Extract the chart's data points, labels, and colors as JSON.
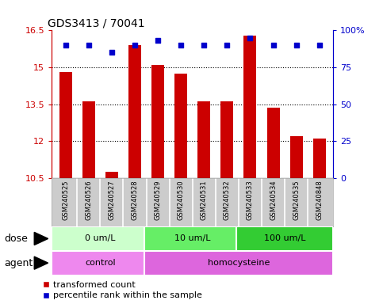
{
  "title": "GDS3413 / 70041",
  "samples": [
    "GSM240525",
    "GSM240526",
    "GSM240527",
    "GSM240528",
    "GSM240529",
    "GSM240530",
    "GSM240531",
    "GSM240532",
    "GSM240533",
    "GSM240534",
    "GSM240535",
    "GSM240848"
  ],
  "bar_values": [
    14.8,
    13.6,
    10.75,
    15.9,
    15.1,
    14.75,
    13.6,
    13.6,
    16.3,
    13.35,
    12.2,
    12.1
  ],
  "percentile_values": [
    90,
    90,
    85,
    90,
    93,
    90,
    90,
    90,
    95,
    90,
    90,
    90
  ],
  "bar_color": "#cc0000",
  "dot_color": "#0000cc",
  "ylim_left": [
    10.5,
    16.5
  ],
  "ylim_right": [
    0,
    100
  ],
  "yticks_left": [
    10.5,
    12.0,
    13.5,
    15.0,
    16.5
  ],
  "yticks_right": [
    0,
    25,
    50,
    75,
    100
  ],
  "ytick_labels_left": [
    "10.5",
    "12",
    "13.5",
    "15",
    "16.5"
  ],
  "ytick_labels_right": [
    "0",
    "25",
    "50",
    "75",
    "100%"
  ],
  "dose_groups": [
    {
      "label": "0 um/L",
      "start": 0,
      "end": 4,
      "color": "#ccffcc"
    },
    {
      "label": "10 um/L",
      "start": 4,
      "end": 8,
      "color": "#66ee66"
    },
    {
      "label": "100 um/L",
      "start": 8,
      "end": 12,
      "color": "#33cc33"
    }
  ],
  "agent_groups": [
    {
      "label": "control",
      "start": 0,
      "end": 4,
      "color": "#ee88ee"
    },
    {
      "label": "homocysteine",
      "start": 4,
      "end": 12,
      "color": "#dd66dd"
    }
  ],
  "dose_label": "dose",
  "agent_label": "agent",
  "legend_bar_label": "transformed count",
  "legend_dot_label": "percentile rank within the sample",
  "sample_box_color": "#cccccc",
  "sample_box_border": "#aaaaaa"
}
